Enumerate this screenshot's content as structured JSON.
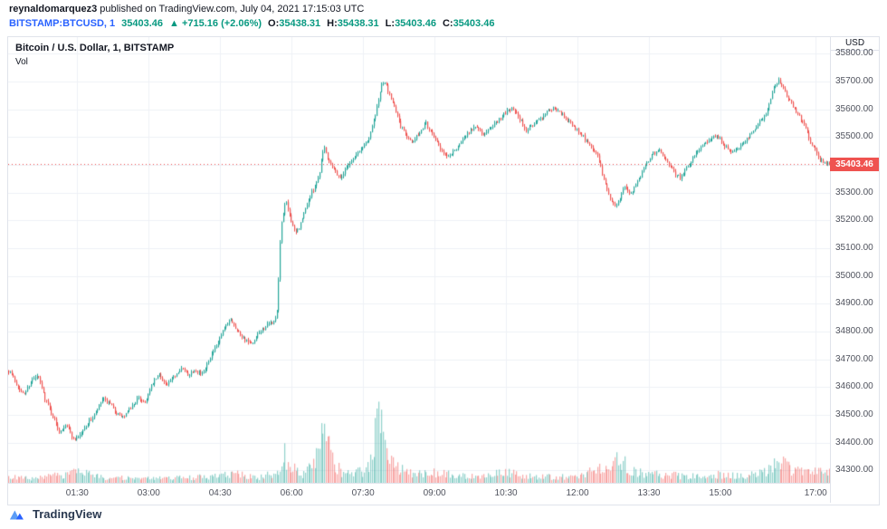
{
  "header": {
    "author": "reynaldomarquez3",
    "published_suffix": " published on TradingView.com, July 04, 2021 17:15:03 UTC",
    "symbol": "BITSTAMP:BTCUSD, 1",
    "last_price": "35403.46",
    "change": "▲ +715.16 (+2.06%)",
    "ohlc": [
      {
        "label": "O:",
        "value": "35438.31"
      },
      {
        "label": "H:",
        "value": "35438.31"
      },
      {
        "label": "L:",
        "value": "35403.46"
      },
      {
        "label": "C:",
        "value": "35403.46"
      }
    ]
  },
  "legend": {
    "title": "Bitcoin / U.S. Dollar, 1, BITSTAMP",
    "indicator": "Vol"
  },
  "price_axis": {
    "currency": "USD"
  },
  "footer": {
    "brand": "TradingView"
  },
  "chart_data": {
    "type": "candlestick",
    "title": "Bitcoin / U.S. Dollar, 1, BITSTAMP",
    "exchange": "BITSTAMP",
    "interval": "1 minute",
    "currency": "USD",
    "time_range_hours": [
      0.05,
      17.3
    ],
    "candle_step_minutes": 2,
    "ylim": [
      34255,
      35860
    ],
    "y_ticks": [
      34300,
      34400,
      34500,
      34600,
      34700,
      34800,
      34900,
      35000,
      35100,
      35200,
      35300,
      35400,
      35500,
      35600,
      35700,
      35800
    ],
    "x_ticks": [
      {
        "h": 1.5,
        "label": "01:30"
      },
      {
        "h": 3,
        "label": "03:00"
      },
      {
        "h": 4.5,
        "label": "04:30"
      },
      {
        "h": 6,
        "label": "06:00"
      },
      {
        "h": 7.5,
        "label": "07:30"
      },
      {
        "h": 9,
        "label": "09:00"
      },
      {
        "h": 10.5,
        "label": "10:30"
      },
      {
        "h": 12,
        "label": "12:00"
      },
      {
        "h": 13.5,
        "label": "13:30"
      },
      {
        "h": 15,
        "label": "15:00"
      },
      {
        "h": 17,
        "label": "17:00"
      }
    ],
    "last_price": 35403.46,
    "open": 35438.31,
    "high": 35438.31,
    "low": 35403.46,
    "close": 35403.46,
    "change_abs": 715.16,
    "change_pct": 2.06,
    "colors": {
      "up": "#26a69a",
      "down": "#ef5350",
      "vol_up": "rgba(38,166,154,0.5)",
      "vol_down": "rgba(239,83,80,0.5)",
      "grid": "#eef1f6",
      "last_price_line": "#ef5350",
      "axis_text": "#50535e"
    },
    "price_path": [
      [
        0.1,
        34660
      ],
      [
        0.25,
        34610
      ],
      [
        0.4,
        34570
      ],
      [
        0.55,
        34620
      ],
      [
        0.7,
        34640
      ],
      [
        0.85,
        34560
      ],
      [
        1.0,
        34500
      ],
      [
        1.15,
        34440
      ],
      [
        1.3,
        34470
      ],
      [
        1.45,
        34410
      ],
      [
        1.6,
        34430
      ],
      [
        1.75,
        34470
      ],
      [
        1.9,
        34500
      ],
      [
        2.05,
        34555
      ],
      [
        2.2,
        34540
      ],
      [
        2.35,
        34505
      ],
      [
        2.5,
        34490
      ],
      [
        2.65,
        34525
      ],
      [
        2.8,
        34560
      ],
      [
        2.95,
        34545
      ],
      [
        3.1,
        34610
      ],
      [
        3.25,
        34645
      ],
      [
        3.4,
        34605
      ],
      [
        3.55,
        34635
      ],
      [
        3.7,
        34670
      ],
      [
        3.85,
        34645
      ],
      [
        4.0,
        34665
      ],
      [
        4.15,
        34645
      ],
      [
        4.3,
        34705
      ],
      [
        4.45,
        34745
      ],
      [
        4.6,
        34805
      ],
      [
        4.75,
        34845
      ],
      [
        4.9,
        34800
      ],
      [
        5.05,
        34770
      ],
      [
        5.2,
        34750
      ],
      [
        5.35,
        34795
      ],
      [
        5.5,
        34820
      ],
      [
        5.65,
        34835
      ],
      [
        5.72,
        34870
      ],
      [
        5.8,
        35180
      ],
      [
        5.9,
        35270
      ],
      [
        6.0,
        35210
      ],
      [
        6.1,
        35150
      ],
      [
        6.2,
        35180
      ],
      [
        6.35,
        35260
      ],
      [
        6.5,
        35320
      ],
      [
        6.6,
        35360
      ],
      [
        6.7,
        35470
      ],
      [
        6.8,
        35420
      ],
      [
        6.9,
        35390
      ],
      [
        7.05,
        35350
      ],
      [
        7.2,
        35400
      ],
      [
        7.35,
        35430
      ],
      [
        7.5,
        35460
      ],
      [
        7.65,
        35500
      ],
      [
        7.8,
        35590
      ],
      [
        7.92,
        35700
      ],
      [
        8.0,
        35690
      ],
      [
        8.12,
        35640
      ],
      [
        8.25,
        35570
      ],
      [
        8.4,
        35510
      ],
      [
        8.55,
        35475
      ],
      [
        8.7,
        35515
      ],
      [
        8.85,
        35550
      ],
      [
        9.0,
        35505
      ],
      [
        9.15,
        35455
      ],
      [
        9.3,
        35425
      ],
      [
        9.45,
        35455
      ],
      [
        9.6,
        35490
      ],
      [
        9.75,
        35520
      ],
      [
        9.9,
        35540
      ],
      [
        10.05,
        35505
      ],
      [
        10.2,
        35535
      ],
      [
        10.35,
        35560
      ],
      [
        10.5,
        35585
      ],
      [
        10.65,
        35605
      ],
      [
        10.8,
        35570
      ],
      [
        10.95,
        35525
      ],
      [
        11.1,
        35545
      ],
      [
        11.25,
        35565
      ],
      [
        11.4,
        35595
      ],
      [
        11.55,
        35605
      ],
      [
        11.7,
        35580
      ],
      [
        11.85,
        35555
      ],
      [
        12.0,
        35530
      ],
      [
        12.15,
        35500
      ],
      [
        12.3,
        35470
      ],
      [
        12.45,
        35430
      ],
      [
        12.6,
        35340
      ],
      [
        12.72,
        35270
      ],
      [
        12.85,
        35250
      ],
      [
        13.0,
        35320
      ],
      [
        13.15,
        35295
      ],
      [
        13.3,
        35340
      ],
      [
        13.45,
        35400
      ],
      [
        13.6,
        35440
      ],
      [
        13.75,
        35455
      ],
      [
        13.9,
        35415
      ],
      [
        14.05,
        35370
      ],
      [
        14.2,
        35355
      ],
      [
        14.35,
        35395
      ],
      [
        14.5,
        35440
      ],
      [
        14.65,
        35470
      ],
      [
        14.8,
        35495
      ],
      [
        14.95,
        35505
      ],
      [
        15.1,
        35470
      ],
      [
        15.25,
        35445
      ],
      [
        15.4,
        35460
      ],
      [
        15.55,
        35490
      ],
      [
        15.7,
        35520
      ],
      [
        15.85,
        35555
      ],
      [
        16.0,
        35585
      ],
      [
        16.12,
        35665
      ],
      [
        16.25,
        35705
      ],
      [
        16.38,
        35660
      ],
      [
        16.5,
        35625
      ],
      [
        16.62,
        35590
      ],
      [
        16.75,
        35555
      ],
      [
        16.88,
        35500
      ],
      [
        17.0,
        35455
      ],
      [
        17.12,
        35420
      ],
      [
        17.25,
        35403
      ]
    ],
    "volume_path": [
      [
        0.05,
        0.07
      ],
      [
        0.6,
        0.05
      ],
      [
        1.2,
        0.1
      ],
      [
        1.5,
        0.13
      ],
      [
        2.0,
        0.07
      ],
      [
        2.8,
        0.05
      ],
      [
        3.6,
        0.06
      ],
      [
        4.4,
        0.08
      ],
      [
        4.8,
        0.11
      ],
      [
        5.3,
        0.06
      ],
      [
        5.7,
        0.14
      ],
      [
        5.8,
        0.42
      ],
      [
        5.95,
        0.22
      ],
      [
        6.2,
        0.1
      ],
      [
        6.5,
        0.25
      ],
      [
        6.65,
        0.7
      ],
      [
        6.85,
        0.25
      ],
      [
        7.1,
        0.1
      ],
      [
        7.5,
        0.15
      ],
      [
        7.72,
        0.3
      ],
      [
        7.8,
        1.0
      ],
      [
        7.95,
        0.4
      ],
      [
        8.2,
        0.18
      ],
      [
        8.6,
        0.1
      ],
      [
        9.0,
        0.13
      ],
      [
        9.5,
        0.08
      ],
      [
        10.0,
        0.1
      ],
      [
        10.5,
        0.12
      ],
      [
        11.0,
        0.08
      ],
      [
        11.6,
        0.07
      ],
      [
        12.1,
        0.09
      ],
      [
        12.6,
        0.22
      ],
      [
        12.85,
        0.26
      ],
      [
        13.3,
        0.12
      ],
      [
        13.8,
        0.1
      ],
      [
        14.3,
        0.08
      ],
      [
        14.9,
        0.1
      ],
      [
        15.4,
        0.08
      ],
      [
        15.9,
        0.12
      ],
      [
        16.2,
        0.26
      ],
      [
        16.5,
        0.16
      ],
      [
        16.9,
        0.12
      ],
      [
        17.25,
        0.16
      ]
    ]
  }
}
